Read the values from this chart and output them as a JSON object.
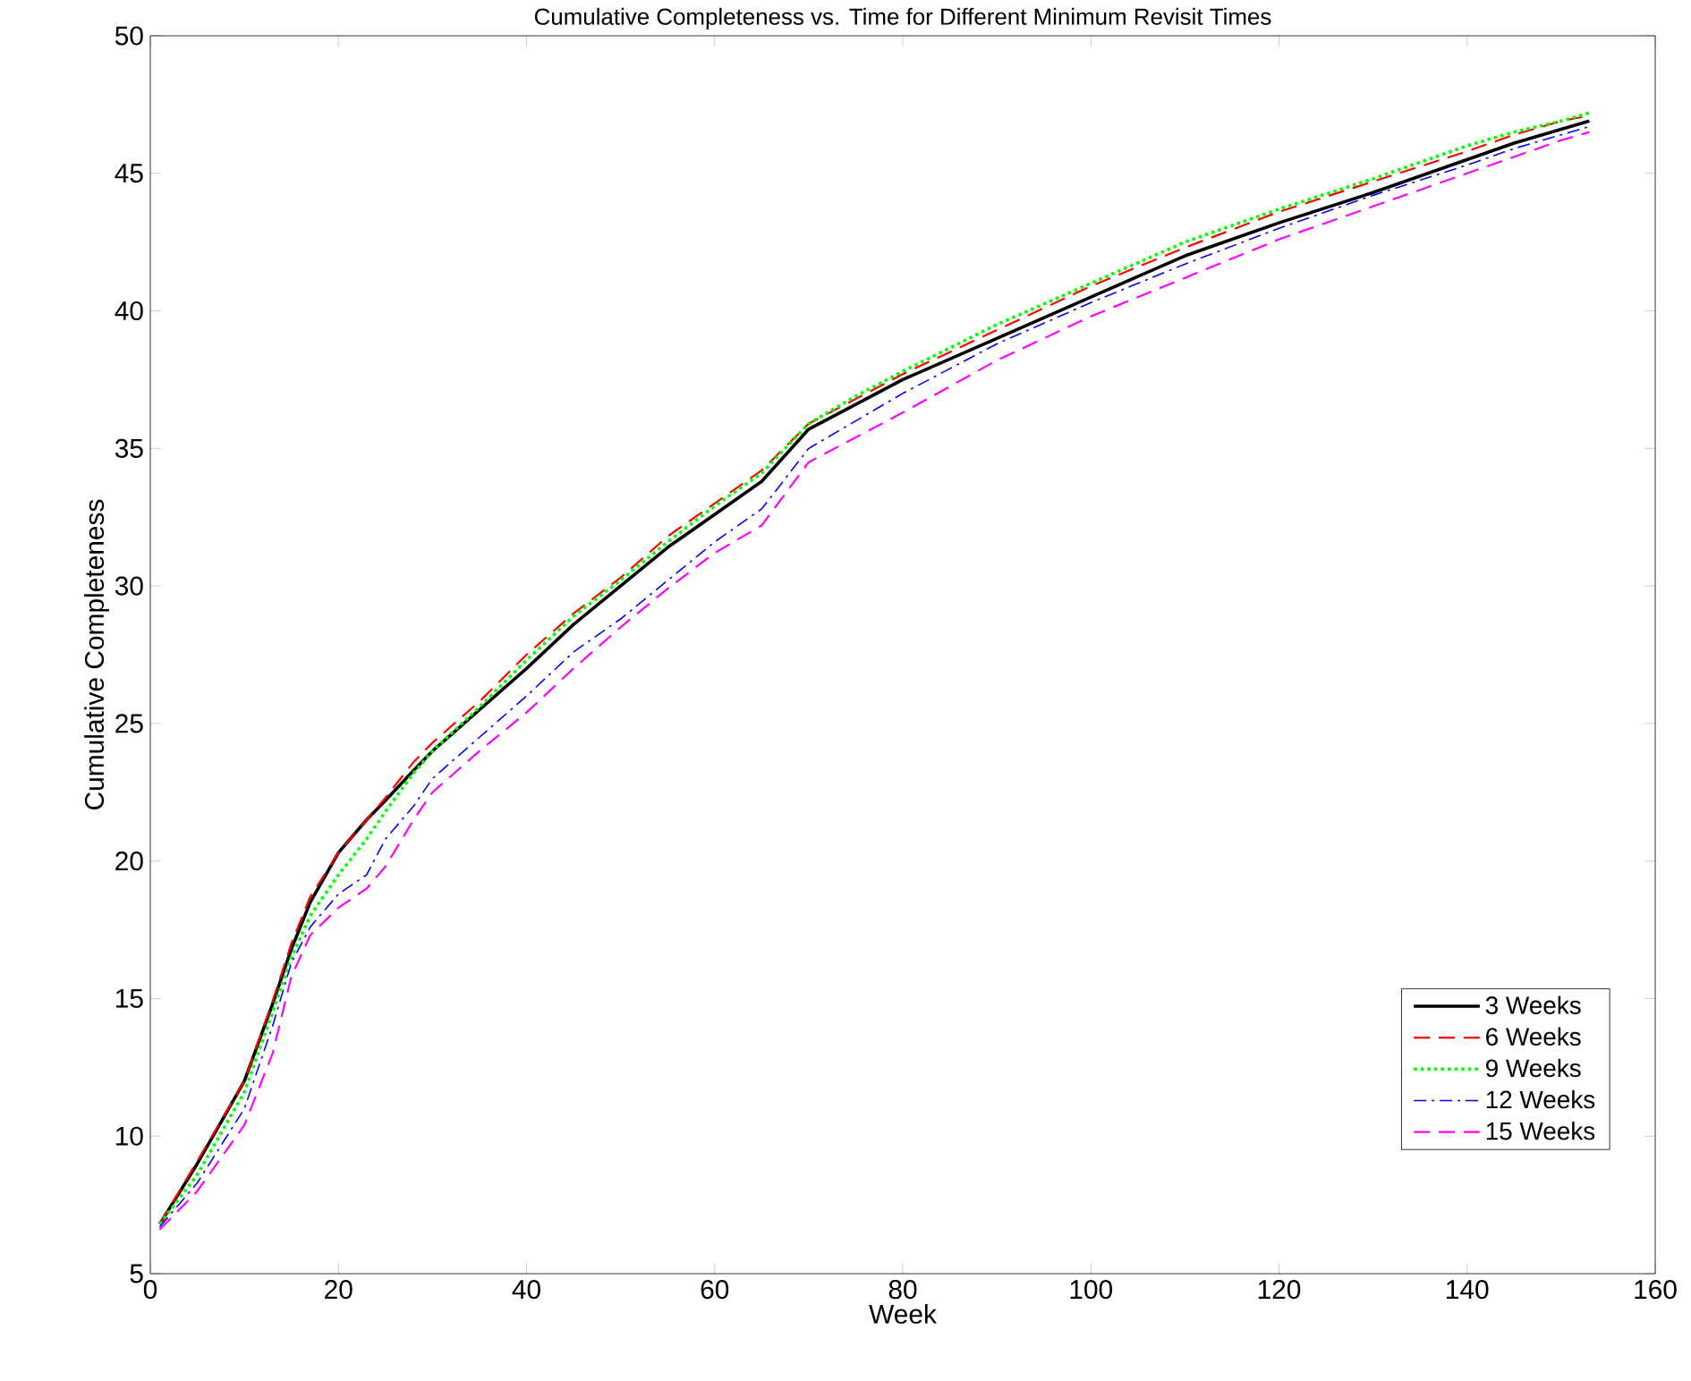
{
  "chart_data": {
    "type": "line",
    "title": "Cumulative Completeness vs. Time for Different Minimum Revisit Times",
    "xlabel": "Week",
    "ylabel": "Cumulative Completeness",
    "x": [
      1,
      5,
      10,
      13,
      15,
      17,
      20,
      23,
      25,
      28,
      30,
      35,
      40,
      45,
      50,
      55,
      60,
      65,
      70,
      75,
      80,
      90,
      100,
      110,
      120,
      130,
      140,
      145,
      150,
      153
    ],
    "series": [
      {
        "name": "3 Weeks",
        "color": "#000000",
        "line_style": "solid",
        "values": [
          6.8,
          9.0,
          12.0,
          14.8,
          16.8,
          18.5,
          20.3,
          21.5,
          22.2,
          23.3,
          24.0,
          25.5,
          27.0,
          28.6,
          30.0,
          31.4,
          32.6,
          33.8,
          35.7,
          36.6,
          37.5,
          39.0,
          40.5,
          42.0,
          43.2,
          44.3,
          45.5,
          46.1,
          46.6,
          46.9
        ]
      },
      {
        "name": "6 Weeks",
        "color": "#ff0000",
        "line_style": "dashed",
        "values": [
          6.8,
          9.1,
          12.0,
          14.9,
          17.0,
          18.7,
          20.3,
          21.5,
          22.3,
          23.6,
          24.3,
          25.8,
          27.5,
          29.0,
          30.3,
          31.8,
          33.0,
          34.2,
          35.9,
          36.8,
          37.7,
          39.3,
          40.9,
          42.3,
          43.6,
          44.7,
          45.8,
          46.4,
          46.9,
          47.1
        ]
      },
      {
        "name": "9 Weeks",
        "color": "#00ff00",
        "line_style": "dotted",
        "values": [
          6.8,
          8.6,
          11.6,
          14.5,
          16.5,
          18.0,
          19.5,
          20.8,
          21.8,
          23.2,
          24.0,
          25.6,
          27.3,
          28.9,
          30.2,
          31.6,
          32.9,
          34.1,
          35.9,
          36.9,
          37.8,
          39.5,
          41.0,
          42.5,
          43.7,
          44.8,
          46.0,
          46.5,
          46.9,
          47.2
        ]
      },
      {
        "name": "12 Weeks",
        "color": "#0000ff",
        "line_style": "dashdot",
        "values": [
          6.7,
          8.3,
          11.0,
          14.0,
          16.3,
          17.6,
          18.8,
          19.5,
          20.8,
          22.0,
          23.0,
          24.5,
          26.0,
          27.6,
          28.8,
          30.2,
          31.6,
          32.8,
          35.0,
          36.0,
          37.0,
          38.8,
          40.3,
          41.7,
          43.0,
          44.2,
          45.3,
          45.9,
          46.4,
          46.7
        ]
      },
      {
        "name": "15 Weeks",
        "color": "#ff00ff",
        "line_style": "dashed",
        "values": [
          6.6,
          8.0,
          10.4,
          13.0,
          15.8,
          17.3,
          18.3,
          19.0,
          19.8,
          21.5,
          22.5,
          24.0,
          25.4,
          27.0,
          28.5,
          29.9,
          31.2,
          32.2,
          34.5,
          35.4,
          36.3,
          38.2,
          39.8,
          41.2,
          42.6,
          43.8,
          45.0,
          45.6,
          46.2,
          46.5
        ]
      }
    ],
    "xlim": [
      0,
      160
    ],
    "xticks": [
      0,
      20,
      40,
      60,
      80,
      100,
      120,
      140,
      160
    ],
    "ylim": [
      5,
      50
    ],
    "yticks": [
      5,
      10,
      15,
      20,
      25,
      30,
      35,
      40,
      45,
      50
    ],
    "grid": false,
    "legend": "bottom right",
    "marker": "none"
  }
}
